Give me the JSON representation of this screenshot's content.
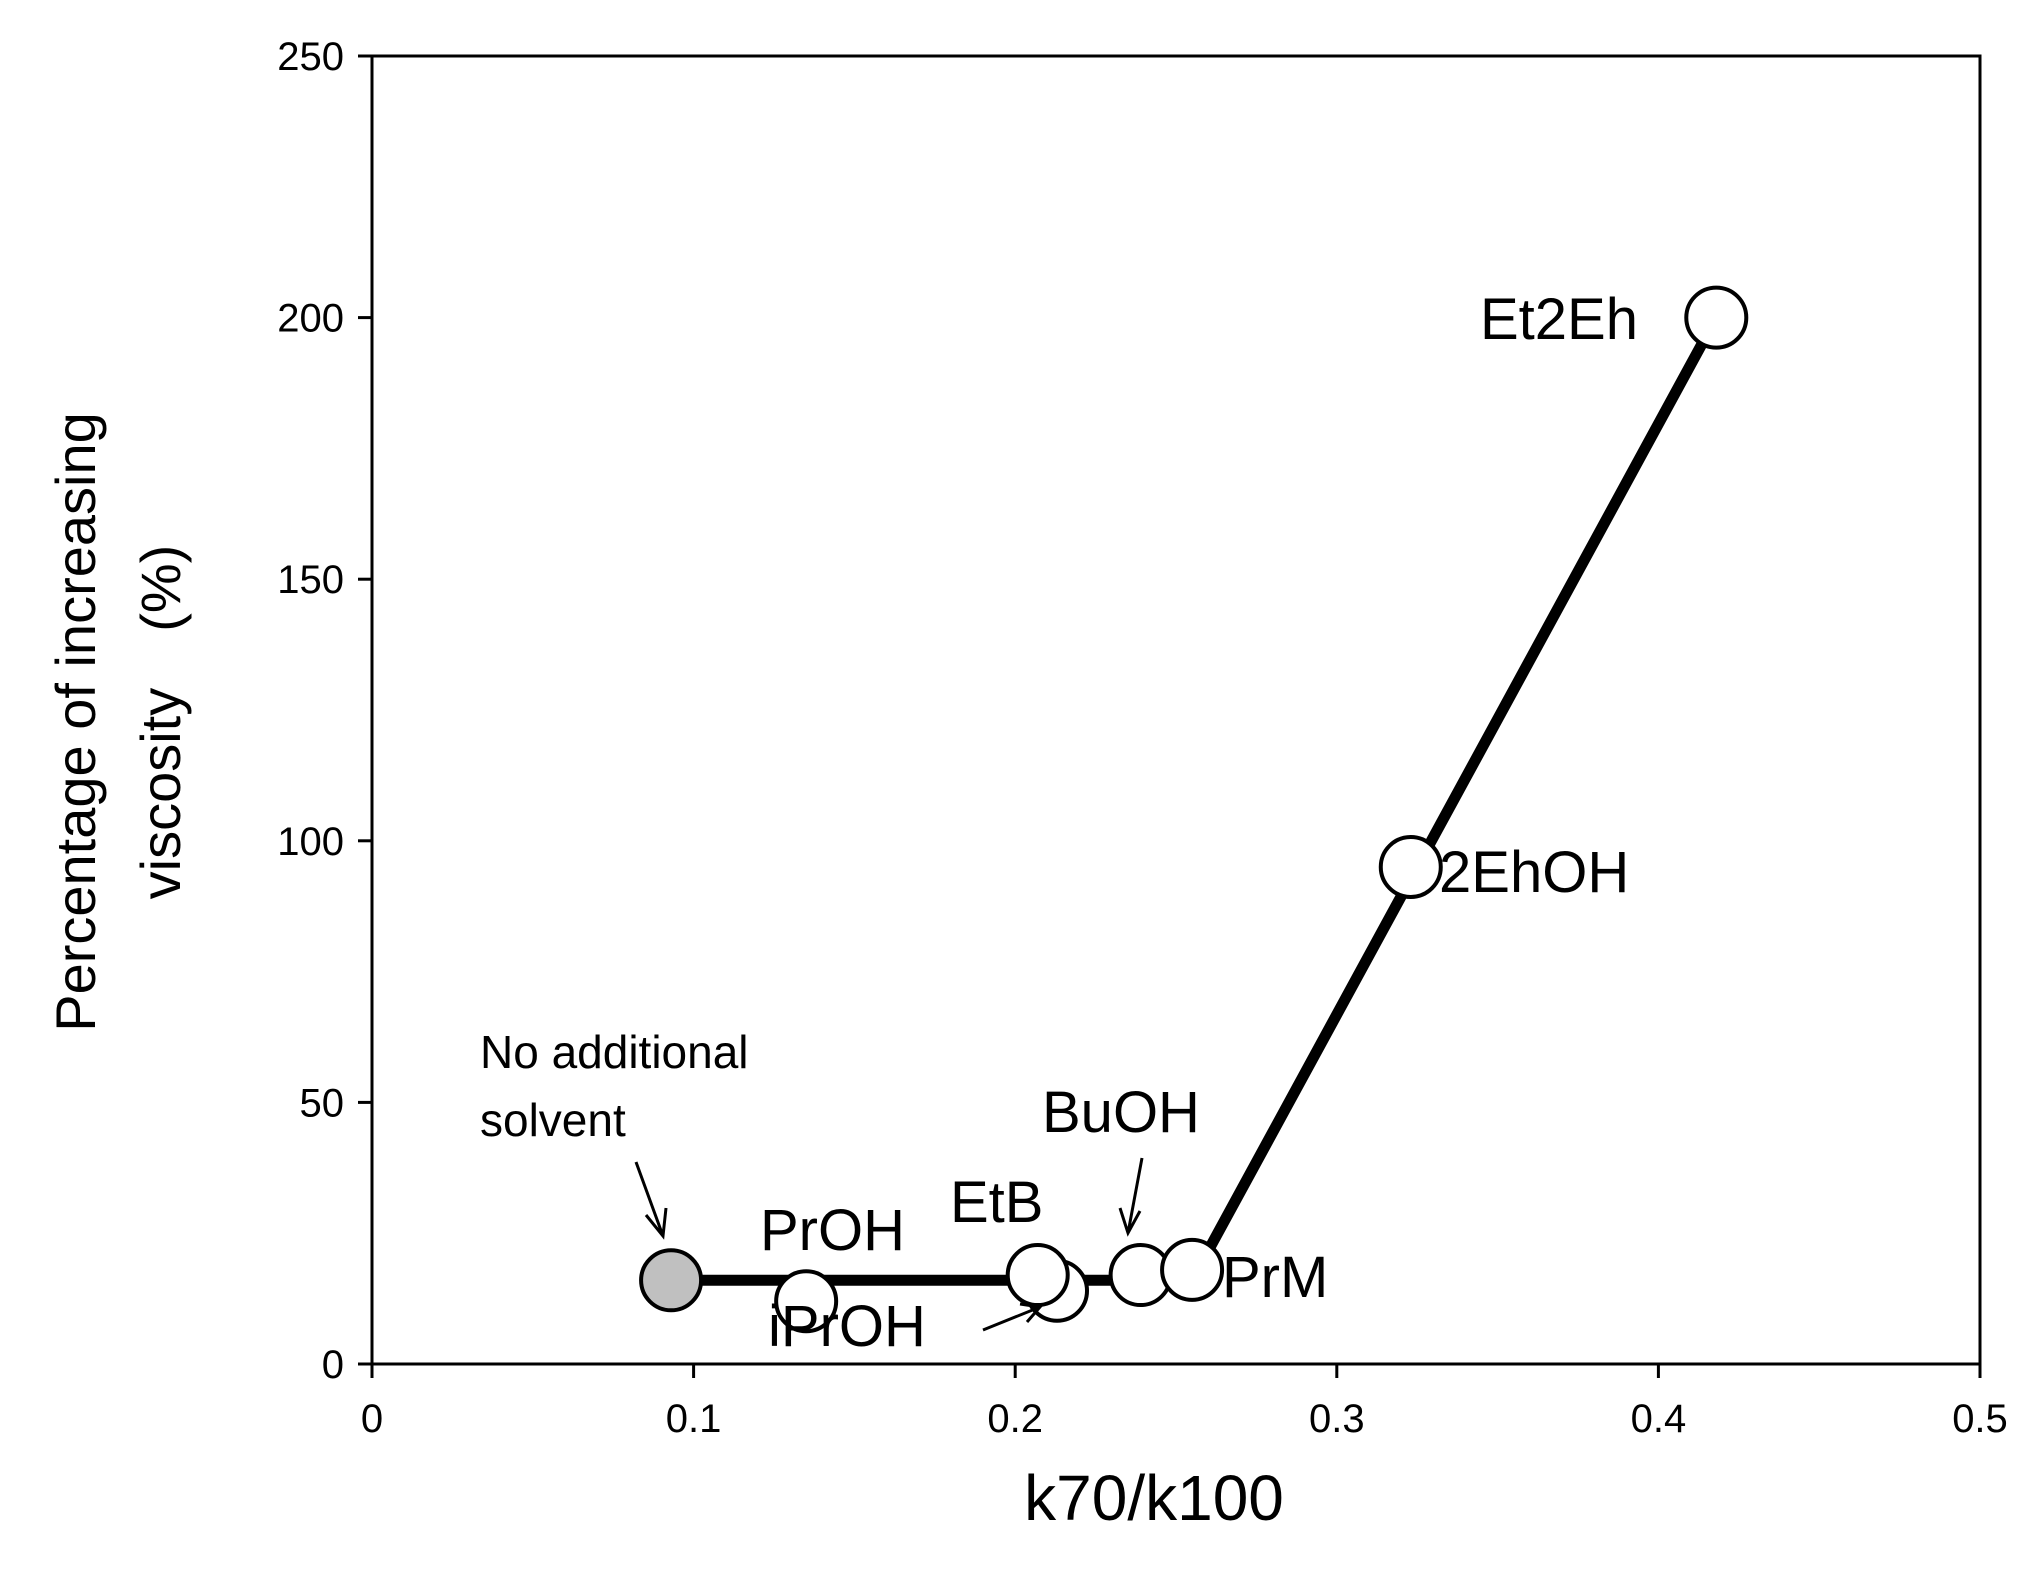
{
  "chart_data": {
    "type": "line",
    "title": "",
    "xlabel": "k70/k100",
    "ylabel_lines": [
      "Percentage of increasing",
      "viscosity　(%)"
    ],
    "xlim": [
      0,
      0.5
    ],
    "ylim": [
      0,
      250
    ],
    "x_ticks": [
      "0",
      "0.1",
      "0.2",
      "0.3",
      "0.4",
      "0.5"
    ],
    "y_ticks": [
      "0",
      "50",
      "100",
      "150",
      "200",
      "250"
    ],
    "grid": false,
    "legend": "none",
    "line_path": [
      {
        "x": 0.093,
        "y": 16
      },
      {
        "x": 0.255,
        "y": 16
      },
      {
        "x": 0.418,
        "y": 200
      }
    ],
    "points": [
      {
        "label": "",
        "x": 0.093,
        "y": 16,
        "fill": "#c0c0c0"
      },
      {
        "label": "PrOH",
        "x": 0.135,
        "y": 12,
        "fill": "#ffffff"
      },
      {
        "label": "iPrOH",
        "x": 0.213,
        "y": 14,
        "fill": "#ffffff"
      },
      {
        "label": "EtB",
        "x": 0.207,
        "y": 17,
        "fill": "#ffffff"
      },
      {
        "label": "BuOH",
        "x": 0.239,
        "y": 17,
        "fill": "#ffffff"
      },
      {
        "label": "PrM",
        "x": 0.255,
        "y": 18,
        "fill": "#ffffff"
      },
      {
        "label": "2EhOH",
        "x": 0.323,
        "y": 95,
        "fill": "#ffffff"
      },
      {
        "label": "Et2Eh",
        "x": 0.418,
        "y": 200,
        "fill": "#ffffff"
      }
    ],
    "annotation": [
      "No additional",
      "solvent"
    ]
  }
}
